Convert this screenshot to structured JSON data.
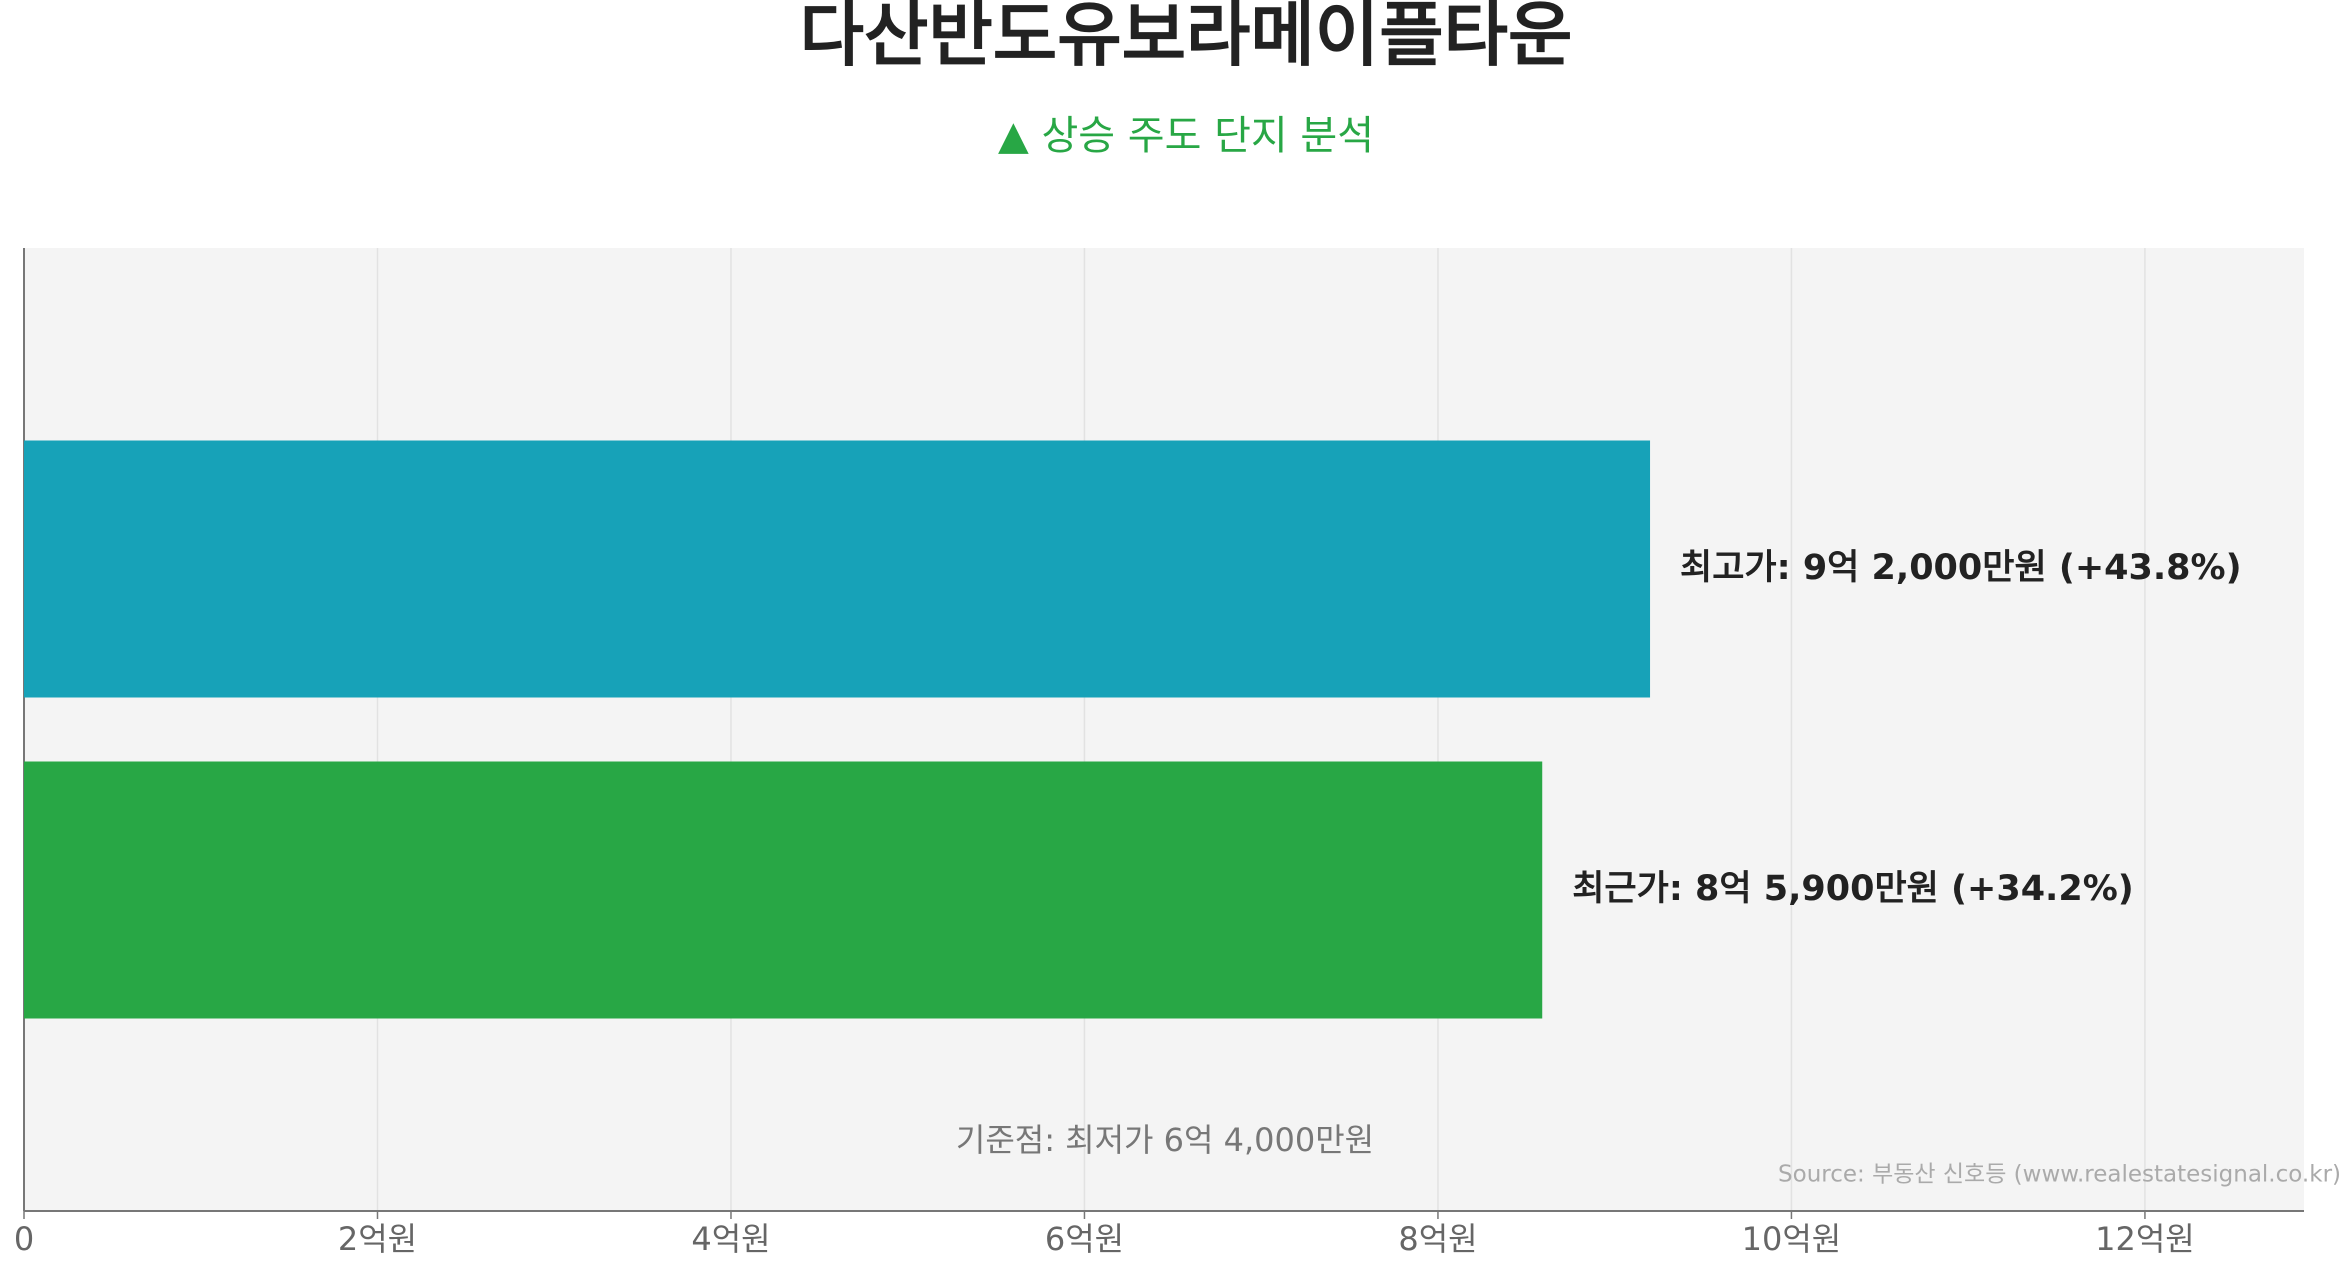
{
  "chart_data": {
    "type": "bar",
    "orientation": "horizontal",
    "title": "다산반도유보라메이플타운",
    "subtitle": "▲ 상승 주도 단지 분석",
    "categories": [
      null,
      null
    ],
    "values": [
      9.2,
      8.59
    ],
    "value_labels": [
      "최고가: 9억 2,000만원 (+43.8%)",
      "최근가: 8억 5,900만원 (+34.2%)"
    ],
    "colors": [
      "#17a2b8",
      "#28a745"
    ],
    "xlim": [
      0,
      12.9
    ],
    "xticks": [
      0,
      {
        "value": 2,
        "label": "2억원"
      },
      {
        "value": 4,
        "label": "4억원"
      },
      {
        "value": 6,
        "label": "6억원"
      },
      {
        "value": 8,
        "label": "8억원"
      },
      {
        "value": 10,
        "label": "10억원"
      },
      {
        "value": 12,
        "label": "12억원"
      }
    ],
    "grid": true,
    "annotations": [
      "기준점: 최저가 6억 4,000만원",
      "Source: 부동산 신호등 (www.realestatesignal.co.kr)"
    ]
  }
}
